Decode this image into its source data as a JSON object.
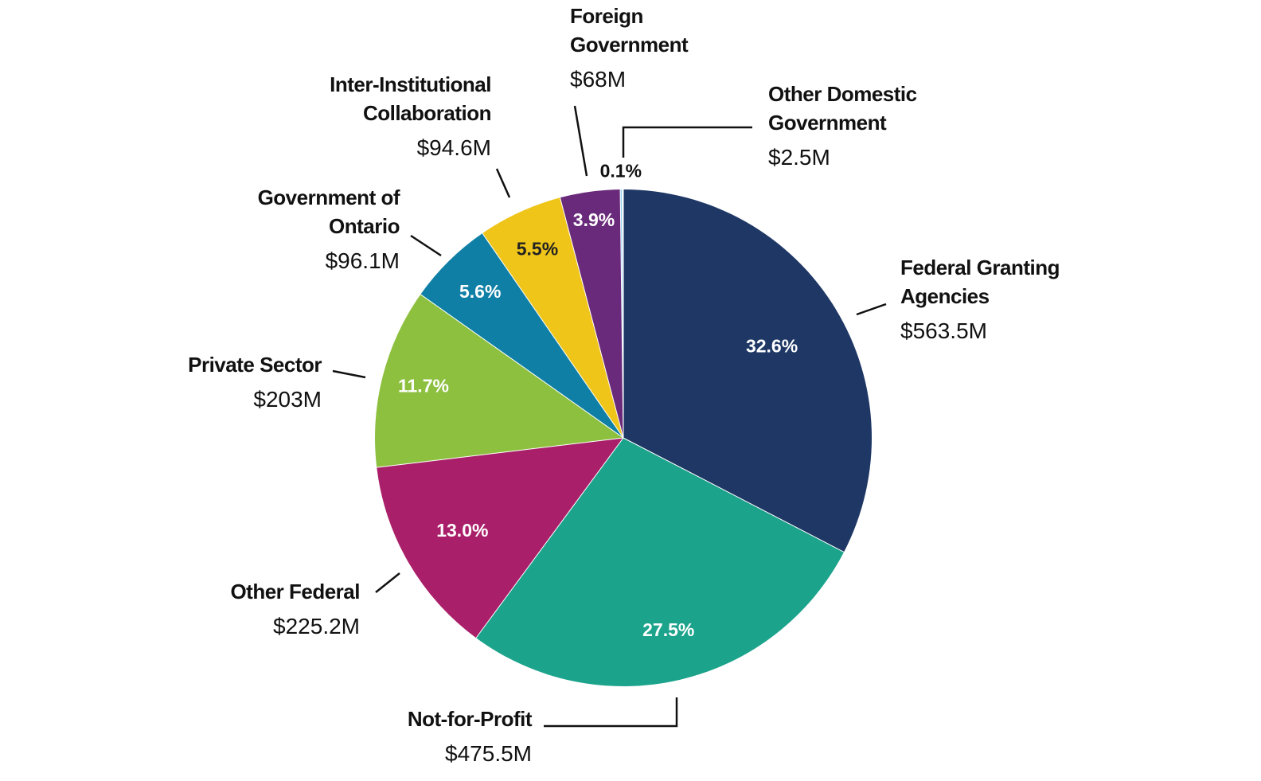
{
  "chart_data": {
    "type": "pie",
    "categories": [
      "Federal Granting Agencies",
      "Not-for-Profit",
      "Other Federal",
      "Private Sector",
      "Government of Ontario",
      "Inter-Institutional Collaboration",
      "Foreign Government",
      "Other Domestic Government"
    ],
    "values": [
      32.6,
      27.5,
      13.0,
      11.7,
      5.6,
      5.5,
      3.9,
      0.1
    ],
    "value_labels": [
      "32.6%",
      "27.5%",
      "13.0%",
      "11.7%",
      "5.6%",
      "5.5%",
      "3.9%",
      "0.1%"
    ],
    "amounts": [
      563.5,
      475.5,
      225.2,
      203,
      96.1,
      94.6,
      68,
      2.5
    ],
    "amount_labels": [
      "$563.5M",
      "$475.5M",
      "$225.2M",
      "$203M",
      "$96.1M",
      "$94.6M",
      "$68M",
      "$2.5M"
    ],
    "colors": [
      "#1e3765",
      "#1ba38b",
      "#aa1f69",
      "#8dc03f",
      "#0f7fa6",
      "#efc51a",
      "#6a2a7b",
      "#8fd0f0"
    ]
  }
}
